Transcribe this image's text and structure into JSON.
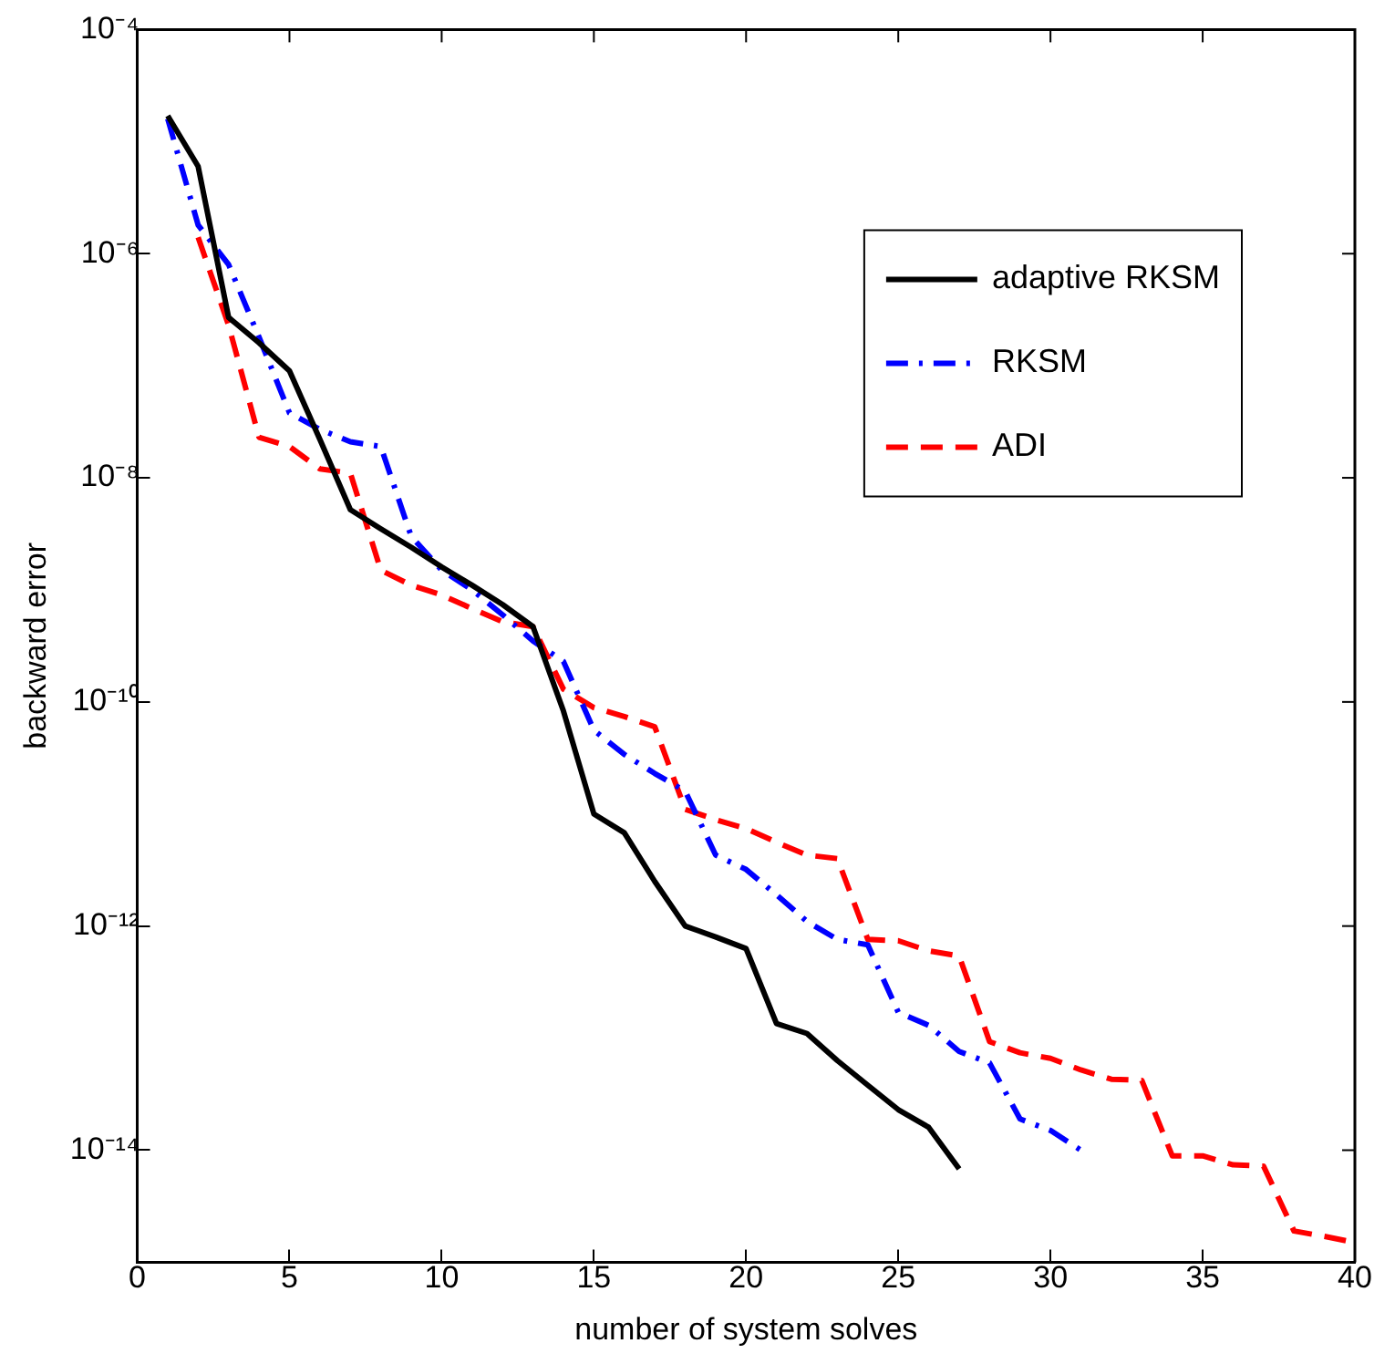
{
  "chart_data": {
    "type": "line",
    "xlabel": "number of system solves",
    "ylabel": "backward error",
    "log": "y",
    "grid": false,
    "legend": "top right",
    "marker": "none",
    "xlim": [
      0,
      40
    ],
    "xticks": [
      0,
      5,
      10,
      15,
      20,
      25,
      30,
      35,
      40
    ],
    "ylim": [
      1e-15,
      0.0001
    ],
    "yticks": [
      {
        "value": 0.0001,
        "label": "10⁻⁴"
      },
      {
        "value": 1e-06,
        "label": "10⁻⁶"
      },
      {
        "value": 1e-08,
        "label": "10⁻⁸"
      },
      {
        "value": 1e-10,
        "label": "10⁻¹⁰"
      },
      {
        "value": 1e-12,
        "label": "10⁻¹²"
      },
      {
        "value": 1e-14,
        "label": "10⁻¹⁴"
      }
    ],
    "series": [
      {
        "name": "adaptive RKSM",
        "color": "#000000",
        "line_style": "solid",
        "x": [
          1,
          2,
          3,
          4,
          5,
          6,
          7,
          8,
          9,
          10,
          11,
          12,
          13,
          14,
          15,
          16,
          17,
          18,
          19,
          20,
          21,
          22,
          23,
          24,
          25,
          26,
          27
        ],
        "values": [
          1.7e-05,
          6e-06,
          2.7e-07,
          1.6e-07,
          9e-08,
          2.2e-08,
          5.2e-09,
          3.5e-09,
          2.4e-09,
          1.6e-09,
          1.1e-09,
          7.4e-10,
          4.7e-10,
          8.3e-11,
          1e-11,
          6.8e-12,
          2.5e-12,
          1e-12,
          8e-13,
          6.3e-13,
          1.35e-13,
          1.1e-13,
          6.3e-14,
          3.8e-14,
          2.3e-14,
          1.6e-14,
          6.8e-15
        ]
      },
      {
        "name": "RKSM",
        "color": "#0000ff",
        "line_style": "dashdot",
        "x": [
          1,
          2,
          3,
          4,
          5,
          6,
          7,
          8,
          9,
          10,
          11,
          12,
          13,
          14,
          15,
          16,
          17,
          18,
          19,
          20,
          21,
          22,
          23,
          24,
          25,
          26,
          27,
          28,
          29,
          30,
          31
        ],
        "values": [
          1.6e-05,
          1.8e-06,
          8e-07,
          1.8e-07,
          3.8e-08,
          2.7e-08,
          2.1e-08,
          1.9e-08,
          3e-09,
          1.5e-09,
          1e-09,
          6e-10,
          3.5e-10,
          2.3e-10,
          5.6e-11,
          3.4e-11,
          2.3e-11,
          1.6e-11,
          4.3e-12,
          3.2e-12,
          1.9e-12,
          1.1e-12,
          7.6e-13,
          6.8e-13,
          1.7e-13,
          1.3e-13,
          7.6e-14,
          6e-14,
          1.9e-14,
          1.5e-14,
          1e-14
        ]
      },
      {
        "name": "ADI",
        "color": "#ff0000",
        "line_style": "dashed",
        "x": [
          2,
          3,
          4,
          5,
          6,
          7,
          8,
          9,
          10,
          11,
          12,
          13,
          14,
          15,
          16,
          17,
          18,
          19,
          20,
          21,
          22,
          23,
          24,
          25,
          26,
          27,
          28,
          29,
          30,
          31,
          32,
          33,
          34,
          35,
          36,
          37,
          38,
          39,
          40
        ],
        "values": [
          1.4e-06,
          2.3e-07,
          2.3e-08,
          1.9e-08,
          1.2e-08,
          1.1e-08,
          1.5e-09,
          1.1e-09,
          9e-10,
          6.8e-10,
          5.2e-10,
          4.7e-10,
          1.3e-10,
          8.9e-11,
          7.4e-11,
          6e-11,
          1.1e-11,
          8.9e-12,
          7.4e-12,
          5.6e-12,
          4.3e-12,
          4e-12,
          7.6e-13,
          7.4e-13,
          6e-13,
          5.4e-13,
          9.3e-14,
          7.4e-14,
          6.6e-14,
          5.2e-14,
          4.3e-14,
          4.2e-14,
          8.9e-15,
          8.9e-15,
          7.4e-15,
          7.2e-15,
          1.9e-15,
          1.7e-15,
          1.5e-15
        ]
      }
    ]
  }
}
